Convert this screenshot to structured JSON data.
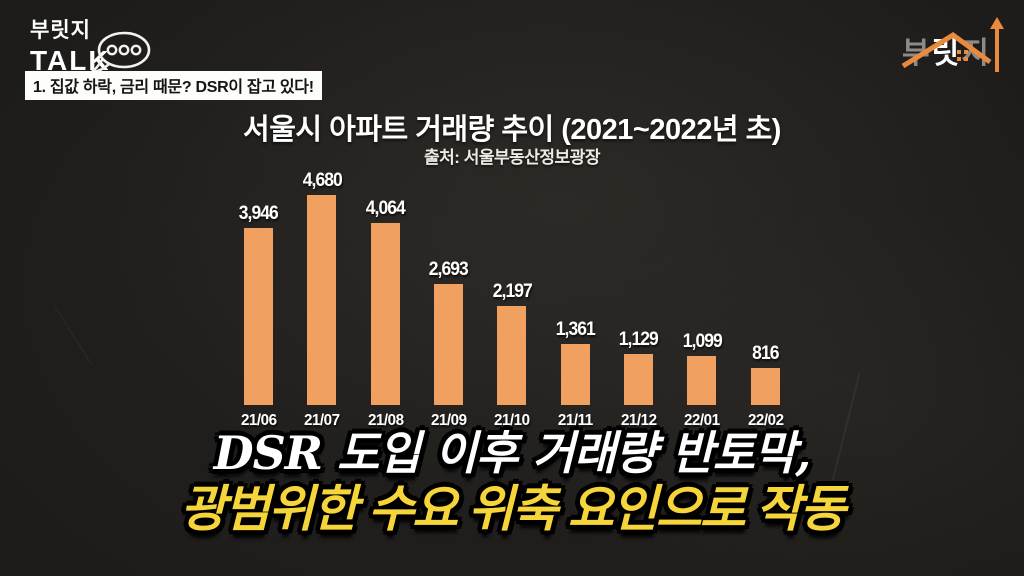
{
  "header": {
    "logo_line1": "부릿지",
    "logo_line2": "TALK",
    "episode_title": "1. 집값 하락, 금리 때문? DSR이 잡고 있다!"
  },
  "brand": {
    "char1": "부",
    "char2": "릿",
    "char3": "지",
    "accent_color": "#e98a3c"
  },
  "chart_data": {
    "type": "bar",
    "title": "서울시 아파트 거래량 추이 (2021~2022년 초)",
    "subtitle": "출처: 서울부동산정보광장",
    "categories": [
      "21/06",
      "21/07",
      "21/08",
      "21/09",
      "21/10",
      "21/11",
      "21/12",
      "22/01",
      "22/02"
    ],
    "values": [
      3946,
      4680,
      4064,
      2693,
      2197,
      1361,
      1129,
      1099,
      816
    ],
    "value_labels": [
      "3,946",
      "4,680",
      "4,064",
      "2,693",
      "2,197",
      "1,361",
      "1,129",
      "1,099",
      "816"
    ],
    "bar_color": "#f0a160",
    "ylim": [
      0,
      4680
    ],
    "xlabel": "",
    "ylabel": "",
    "grid": false,
    "legend": "none",
    "label_color": "#ffffff"
  },
  "caption": {
    "line1": "DSR 도입 이후 거래량 반토막,",
    "line2": "광범위한 수요 위축 요인으로 작동",
    "line1_color": "#ffffff",
    "line2_color": "#f6d53a"
  }
}
